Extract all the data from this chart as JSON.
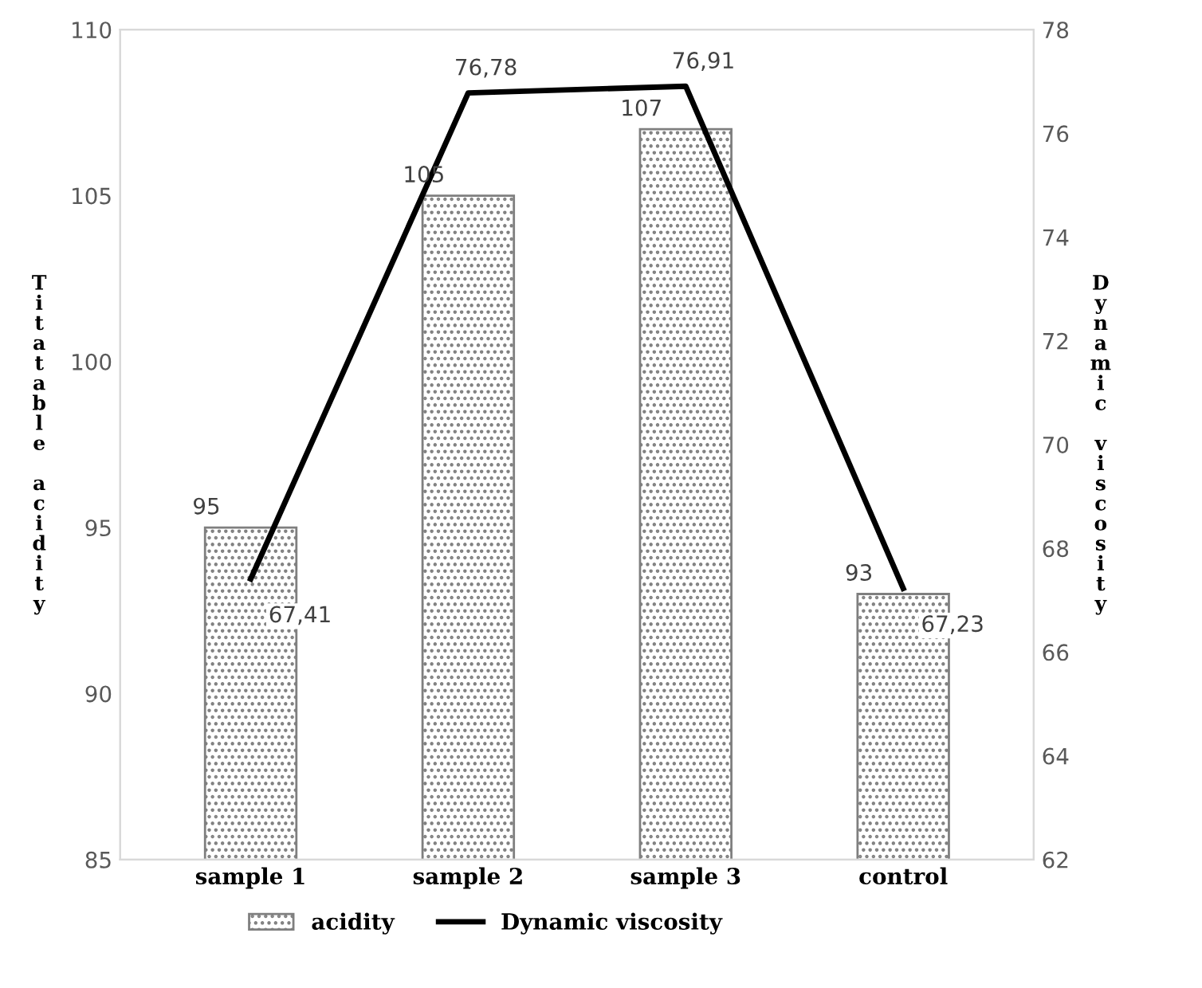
{
  "chart_data": {
    "type": "bar",
    "categories": [
      "sample 1",
      "sample 2",
      "sample 3",
      "control"
    ],
    "ylabel": "Titatable acidity",
    "y2label": "Dynamic viscosity",
    "ylim": [
      85,
      110
    ],
    "yticks": [
      85,
      90,
      95,
      100,
      105,
      110
    ],
    "y2lim": [
      62,
      78
    ],
    "y2ticks": [
      62,
      64,
      66,
      68,
      70,
      72,
      74,
      76,
      78
    ],
    "series": [
      {
        "name": "acidity",
        "color": "#7f7f7f",
        "values": [
          95,
          105,
          107,
          93
        ],
        "value_labels": [
          "95",
          "105",
          "107",
          "93"
        ]
      },
      {
        "name": "Dynamic viscosity",
        "type": "line",
        "axis": "y2",
        "color": "#000000",
        "values": [
          67.41,
          76.78,
          76.91,
          67.23
        ],
        "value_labels": [
          "67,41",
          "76,78",
          "76,91",
          "67,23"
        ]
      }
    ],
    "legend": "bottom",
    "grid": false,
    "marker": "none",
    "line_style": "solid"
  }
}
